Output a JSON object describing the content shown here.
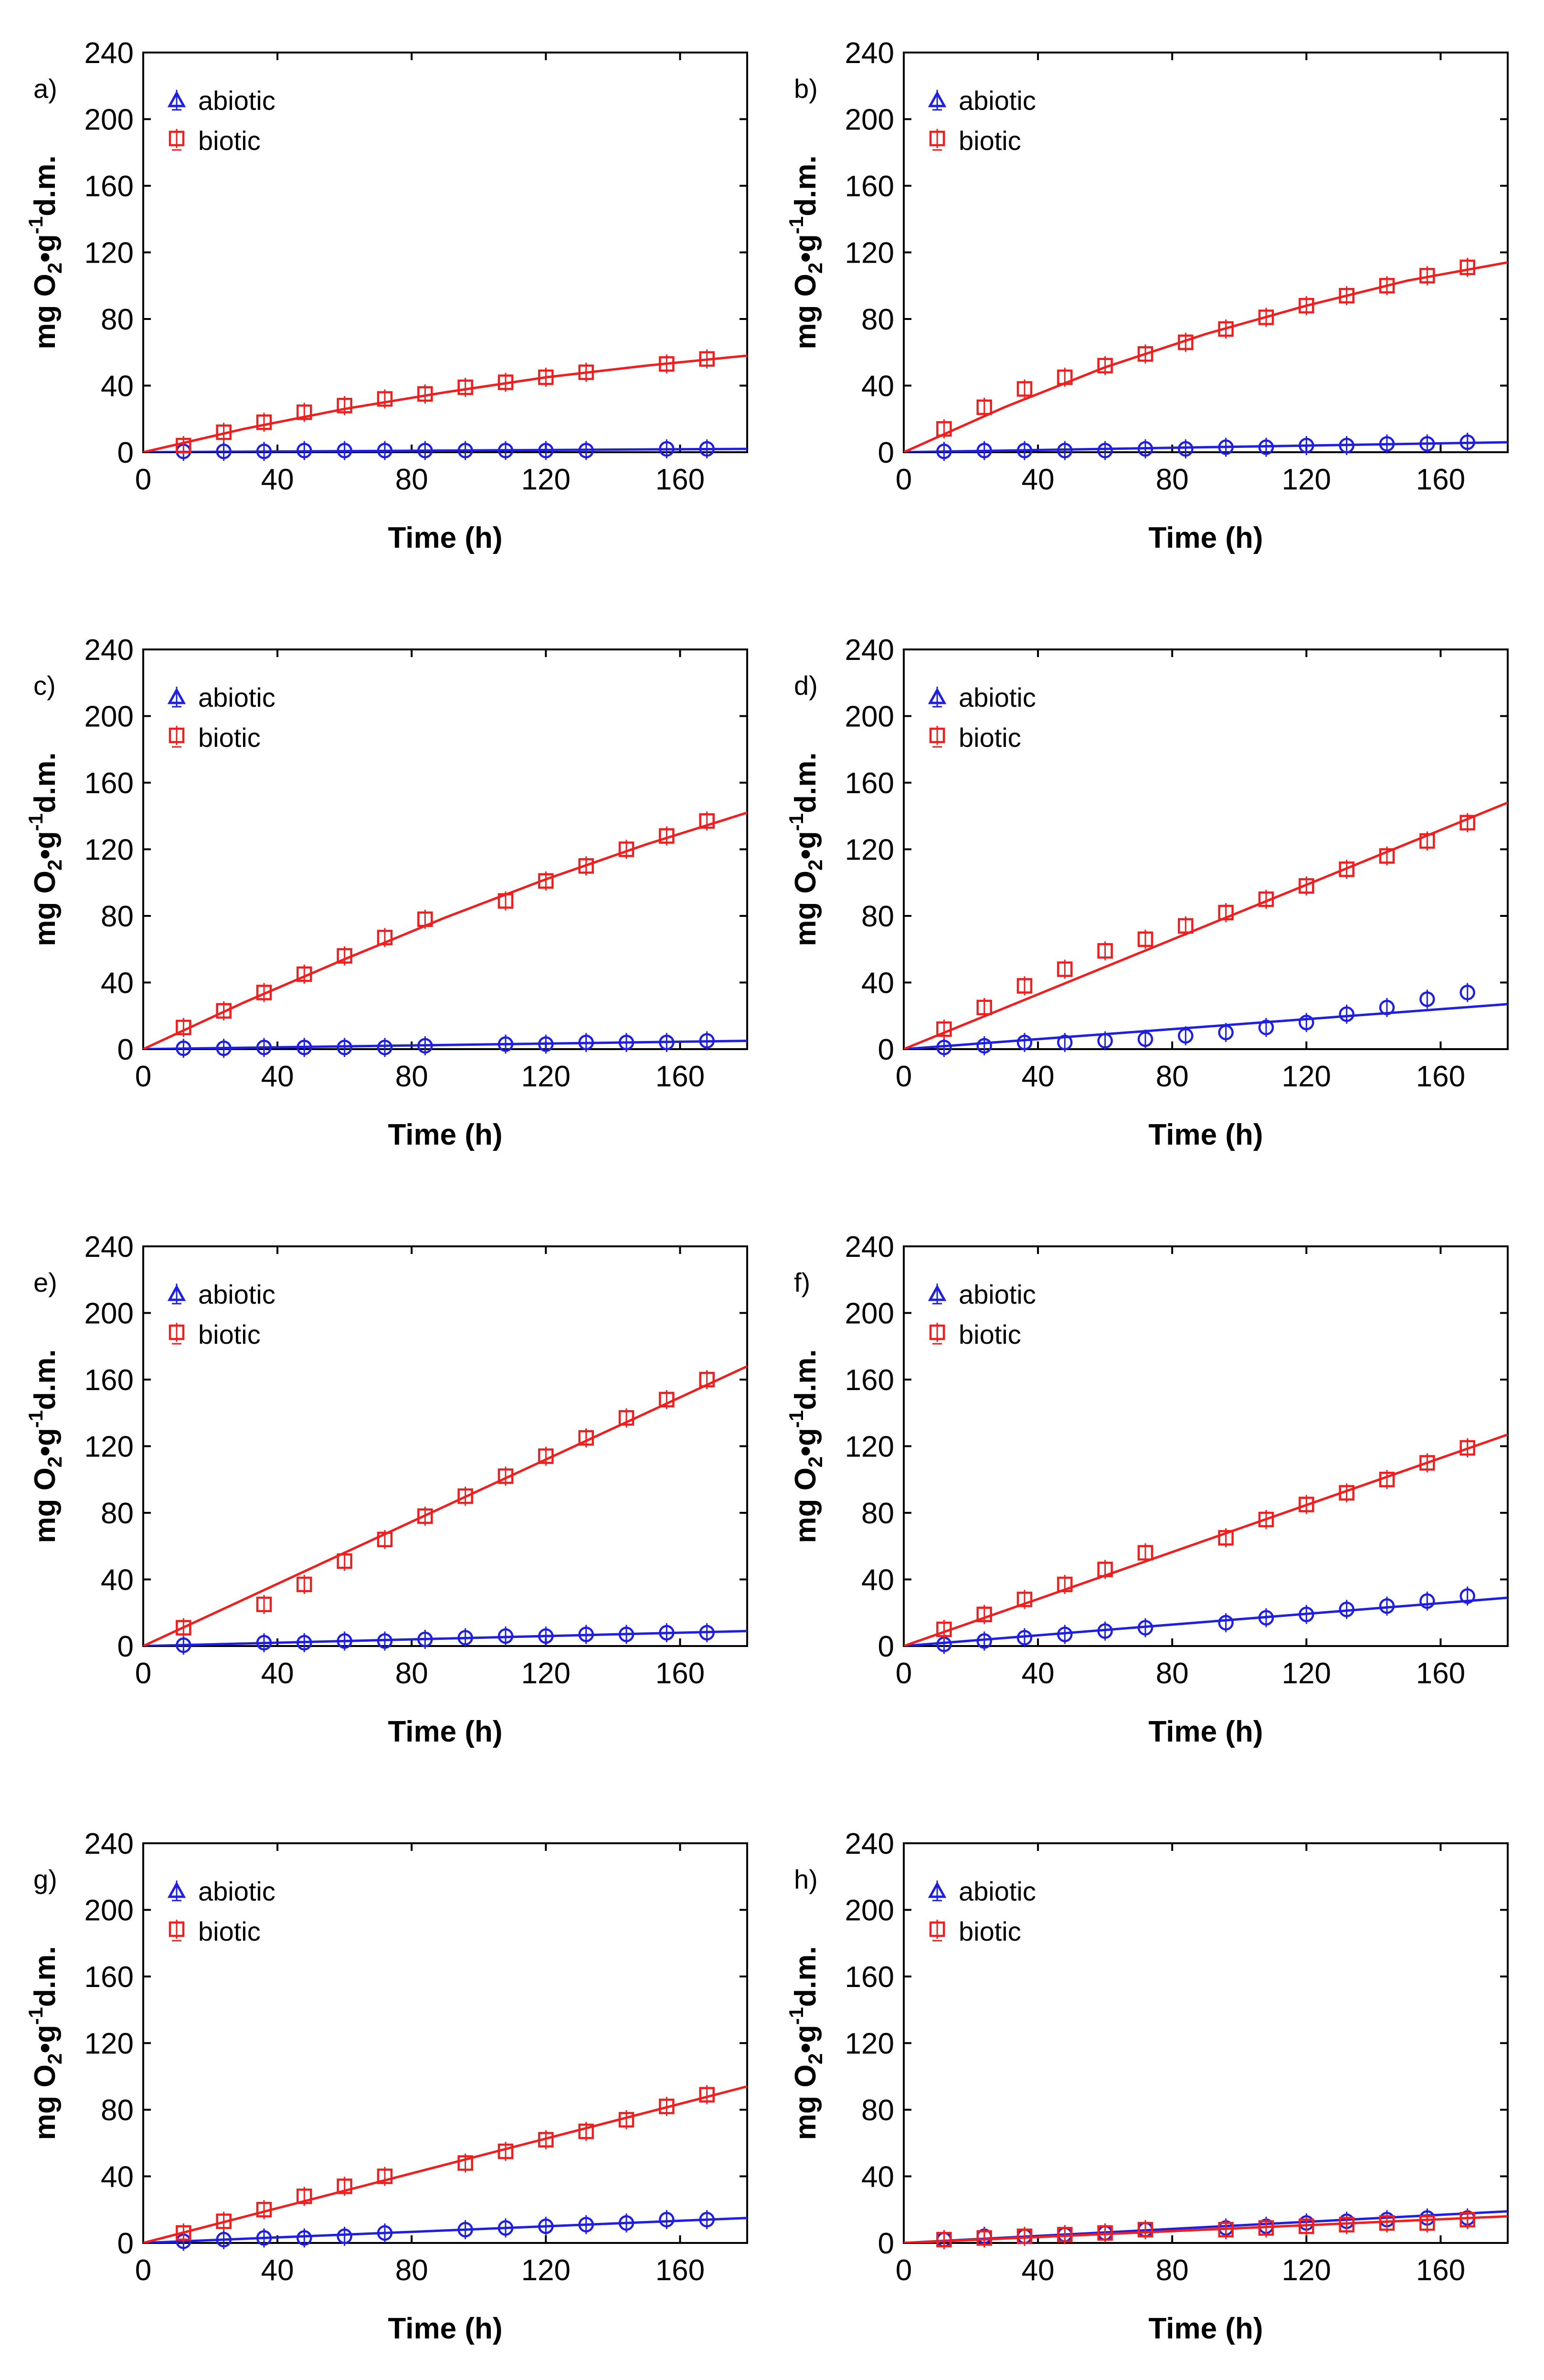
{
  "colors": {
    "abiotic": "#1f1fe0",
    "biotic": "#ef1f1f",
    "axis": "#000000"
  },
  "chart_data": [
    {
      "type": "scatter",
      "panel": "a)",
      "xlabel": "Time (h)",
      "ylabel_parts": [
        "mg O",
        "2",
        "•g",
        "-1",
        "d.m."
      ],
      "xlim": [
        0,
        180
      ],
      "ylim": [
        0,
        240
      ],
      "xticks": [
        "0",
        "40",
        "80",
        "120",
        "160"
      ],
      "yticks": [
        "0",
        "40",
        "80",
        "120",
        "160",
        "200",
        "240"
      ],
      "legend": {
        "placement": "top-left",
        "entries": [
          "abiotic",
          "biotic"
        ]
      },
      "series": [
        {
          "name": "abiotic",
          "x": [
            12,
            24,
            36,
            48,
            60,
            72,
            84,
            96,
            108,
            120,
            132,
            156,
            168
          ],
          "y": [
            0.5,
            0.5,
            0.5,
            1,
            1,
            1,
            1,
            1,
            1,
            1,
            1,
            2,
            2
          ],
          "fit": [
            [
              0,
              0
            ],
            [
              180,
              2
            ]
          ]
        },
        {
          "name": "biotic",
          "x": [
            12,
            24,
            36,
            48,
            60,
            72,
            84,
            96,
            108,
            120,
            132,
            156,
            168
          ],
          "y": [
            4,
            12,
            18,
            24,
            28,
            32,
            35,
            39,
            42,
            45,
            48,
            53,
            56
          ],
          "fit": [
            [
              0,
              0
            ],
            [
              30,
              14
            ],
            [
              60,
              26
            ],
            [
              90,
              36
            ],
            [
              120,
              45
            ],
            [
              150,
              52
            ],
            [
              180,
              58
            ]
          ]
        }
      ]
    },
    {
      "type": "scatter",
      "panel": "b)",
      "xlabel": "Time (h)",
      "ylabel_parts": [
        "mg O",
        "2",
        "•g",
        "-1",
        "d.m."
      ],
      "xlim": [
        0,
        180
      ],
      "ylim": [
        0,
        240
      ],
      "xticks": [
        "0",
        "40",
        "80",
        "120",
        "160"
      ],
      "yticks": [
        "0",
        "40",
        "80",
        "120",
        "160",
        "200",
        "240"
      ],
      "legend": {
        "placement": "top-left",
        "entries": [
          "abiotic",
          "biotic"
        ]
      },
      "series": [
        {
          "name": "abiotic",
          "x": [
            12,
            24,
            36,
            48,
            60,
            72,
            84,
            96,
            108,
            120,
            132,
            144,
            156,
            168
          ],
          "y": [
            0.5,
            1,
            1,
            1,
            1,
            2,
            2,
            3,
            3,
            4,
            4,
            5,
            5,
            6
          ],
          "fit": [
            [
              0,
              0
            ],
            [
              180,
              6
            ]
          ]
        },
        {
          "name": "biotic",
          "x": [
            12,
            24,
            36,
            48,
            60,
            72,
            84,
            96,
            108,
            120,
            132,
            144,
            156,
            168
          ],
          "y": [
            14,
            27,
            38,
            45,
            52,
            59,
            66,
            74,
            81,
            88,
            94,
            100,
            106,
            111
          ],
          "fit": [
            [
              0,
              0
            ],
            [
              30,
              27
            ],
            [
              60,
              51
            ],
            [
              90,
              71
            ],
            [
              120,
              88
            ],
            [
              150,
              103
            ],
            [
              180,
              114
            ]
          ]
        }
      ]
    },
    {
      "type": "scatter",
      "panel": "c)",
      "xlabel": "Time (h)",
      "ylabel_parts": [
        "mg O",
        "2",
        "•g",
        "-1",
        "d.m."
      ],
      "xlim": [
        0,
        180
      ],
      "ylim": [
        0,
        240
      ],
      "xticks": [
        "0",
        "40",
        "80",
        "120",
        "160"
      ],
      "yticks": [
        "0",
        "40",
        "80",
        "120",
        "160",
        "200",
        "240"
      ],
      "legend": {
        "placement": "top-left",
        "entries": [
          "abiotic",
          "biotic"
        ]
      },
      "series": [
        {
          "name": "abiotic",
          "x": [
            12,
            24,
            36,
            48,
            60,
            72,
            84,
            108,
            120,
            132,
            144,
            156,
            168
          ],
          "y": [
            0.5,
            0.5,
            1,
            1,
            1,
            1,
            2,
            3,
            3,
            4,
            4,
            4,
            5
          ],
          "fit": [
            [
              0,
              0
            ],
            [
              180,
              5
            ]
          ]
        },
        {
          "name": "biotic",
          "x": [
            12,
            24,
            36,
            48,
            60,
            72,
            84,
            108,
            120,
            132,
            144,
            156,
            168
          ],
          "y": [
            13,
            23,
            34,
            45,
            56,
            67,
            78,
            89,
            101,
            110,
            120,
            128,
            137
          ],
          "fit": [
            [
              0,
              0
            ],
            [
              30,
              28
            ],
            [
              60,
              54
            ],
            [
              90,
              79
            ],
            [
              120,
              102
            ],
            [
              150,
              123
            ],
            [
              180,
              142
            ]
          ]
        }
      ]
    },
    {
      "type": "scatter",
      "panel": "d)",
      "xlabel": "Time (h)",
      "ylabel_parts": [
        "mg O",
        "2",
        "•g",
        "-1",
        "d.m."
      ],
      "xlim": [
        0,
        180
      ],
      "ylim": [
        0,
        240
      ],
      "xticks": [
        "0",
        "40",
        "80",
        "120",
        "160"
      ],
      "yticks": [
        "0",
        "40",
        "80",
        "120",
        "160",
        "200",
        "240"
      ],
      "legend": {
        "placement": "top-left",
        "entries": [
          "abiotic",
          "biotic"
        ]
      },
      "series": [
        {
          "name": "abiotic",
          "x": [
            12,
            24,
            36,
            48,
            60,
            72,
            84,
            96,
            108,
            120,
            132,
            144,
            156,
            168
          ],
          "y": [
            1,
            2,
            4,
            4,
            5,
            6,
            8,
            10,
            13,
            16,
            21,
            25,
            30,
            34
          ],
          "fit": [
            [
              0,
              0
            ],
            [
              180,
              27
            ]
          ]
        },
        {
          "name": "biotic",
          "x": [
            12,
            24,
            36,
            48,
            60,
            72,
            84,
            96,
            108,
            120,
            132,
            144,
            156,
            168
          ],
          "y": [
            12,
            25,
            38,
            48,
            59,
            66,
            74,
            82,
            90,
            98,
            108,
            116,
            125,
            136
          ],
          "fit": [
            [
              0,
              0
            ],
            [
              180,
              148
            ]
          ]
        }
      ]
    },
    {
      "type": "scatter",
      "panel": "e)",
      "xlabel": "Time (h)",
      "ylabel_parts": [
        "mg O",
        "2",
        "•g",
        "-1",
        "d.m."
      ],
      "xlim": [
        0,
        180
      ],
      "ylim": [
        0,
        240
      ],
      "xticks": [
        "0",
        "40",
        "80",
        "120",
        "160"
      ],
      "yticks": [
        "0",
        "40",
        "80",
        "120",
        "160",
        "200",
        "240"
      ],
      "legend": {
        "placement": "top-left",
        "entries": [
          "abiotic",
          "biotic"
        ]
      },
      "series": [
        {
          "name": "abiotic",
          "x": [
            12,
            36,
            48,
            60,
            72,
            84,
            96,
            108,
            120,
            132,
            144,
            156,
            168
          ],
          "y": [
            0.5,
            2,
            2,
            3,
            3,
            4,
            5,
            6,
            6,
            7,
            7,
            8,
            8
          ],
          "fit": [
            [
              0,
              0
            ],
            [
              180,
              9
            ]
          ]
        },
        {
          "name": "biotic",
          "x": [
            12,
            36,
            48,
            60,
            72,
            84,
            96,
            108,
            120,
            132,
            144,
            156,
            168
          ],
          "y": [
            11,
            25,
            37,
            51,
            64,
            78,
            90,
            102,
            114,
            125,
            137,
            148,
            160
          ],
          "fit": [
            [
              0,
              0
            ],
            [
              180,
              168
            ]
          ]
        }
      ]
    },
    {
      "type": "scatter",
      "panel": "f)",
      "xlabel": "Time (h)",
      "ylabel_parts": [
        "mg O",
        "2",
        "•g",
        "-1",
        "d.m."
      ],
      "xlim": [
        0,
        180
      ],
      "ylim": [
        0,
        240
      ],
      "xticks": [
        "0",
        "40",
        "80",
        "120",
        "160"
      ],
      "yticks": [
        "0",
        "40",
        "80",
        "120",
        "160",
        "200",
        "240"
      ],
      "legend": {
        "placement": "top-left",
        "entries": [
          "abiotic",
          "biotic"
        ]
      },
      "series": [
        {
          "name": "abiotic",
          "x": [
            12,
            24,
            36,
            48,
            60,
            72,
            96,
            108,
            120,
            132,
            144,
            156,
            168
          ],
          "y": [
            1,
            3,
            5,
            7,
            9,
            11,
            14,
            17,
            19,
            22,
            24,
            27,
            30
          ],
          "fit": [
            [
              0,
              0
            ],
            [
              180,
              29
            ]
          ]
        },
        {
          "name": "biotic",
          "x": [
            12,
            24,
            36,
            48,
            60,
            72,
            96,
            108,
            120,
            132,
            144,
            156,
            168
          ],
          "y": [
            10,
            19,
            28,
            37,
            46,
            56,
            65,
            76,
            85,
            92,
            100,
            110,
            119
          ],
          "fit": [
            [
              0,
              0
            ],
            [
              180,
              127
            ]
          ]
        }
      ]
    },
    {
      "type": "scatter",
      "panel": "g)",
      "xlabel": "Time (h)",
      "ylabel_parts": [
        "mg O",
        "2",
        "•g",
        "-1",
        "d.m."
      ],
      "xlim": [
        0,
        180
      ],
      "ylim": [
        0,
        240
      ],
      "xticks": [
        "0",
        "40",
        "80",
        "120",
        "160"
      ],
      "yticks": [
        "0",
        "40",
        "80",
        "120",
        "160",
        "200",
        "240"
      ],
      "legend": {
        "placement": "top-left",
        "entries": [
          "abiotic",
          "biotic"
        ]
      },
      "series": [
        {
          "name": "abiotic",
          "x": [
            12,
            24,
            36,
            48,
            60,
            72,
            96,
            108,
            120,
            132,
            144,
            156,
            168
          ],
          "y": [
            1,
            2,
            3,
            3,
            4,
            6,
            8,
            9,
            10,
            11,
            12,
            14,
            14
          ],
          "fit": [
            [
              0,
              0
            ],
            [
              180,
              15
            ]
          ]
        },
        {
          "name": "biotic",
          "x": [
            12,
            24,
            36,
            48,
            60,
            72,
            96,
            108,
            120,
            132,
            144,
            156,
            168
          ],
          "y": [
            6,
            13,
            20,
            28,
            34,
            40,
            48,
            55,
            62,
            67,
            74,
            82,
            89
          ],
          "fit": [
            [
              0,
              0
            ],
            [
              180,
              94
            ]
          ]
        }
      ]
    },
    {
      "type": "scatter",
      "panel": "h)",
      "xlabel": "Time (h)",
      "ylabel_parts": [
        "mg O",
        "2",
        "•g",
        "-1",
        "d.m."
      ],
      "xlim": [
        0,
        180
      ],
      "ylim": [
        0,
        240
      ],
      "xticks": [
        "0",
        "40",
        "80",
        "120",
        "160"
      ],
      "yticks": [
        "0",
        "40",
        "80",
        "120",
        "160",
        "200",
        "240"
      ],
      "legend": {
        "placement": "top-left",
        "entries": [
          "abiotic",
          "biotic"
        ]
      },
      "series": [
        {
          "name": "abiotic",
          "x": [
            12,
            24,
            36,
            48,
            60,
            72,
            96,
            108,
            120,
            132,
            144,
            156,
            168
          ],
          "y": [
            2,
            4,
            4,
            5,
            6,
            8,
            9,
            10,
            12,
            13,
            14,
            15,
            15
          ],
          "fit": [
            [
              0,
              0
            ],
            [
              180,
              19
            ]
          ]
        },
        {
          "name": "biotic",
          "x": [
            12,
            24,
            36,
            48,
            60,
            72,
            96,
            108,
            120,
            132,
            144,
            156,
            168
          ],
          "y": [
            2,
            3,
            4,
            5,
            6,
            8,
            8,
            9,
            10,
            11,
            12,
            12,
            14
          ],
          "fit": [
            [
              0,
              0
            ],
            [
              180,
              16
            ]
          ]
        }
      ]
    }
  ]
}
